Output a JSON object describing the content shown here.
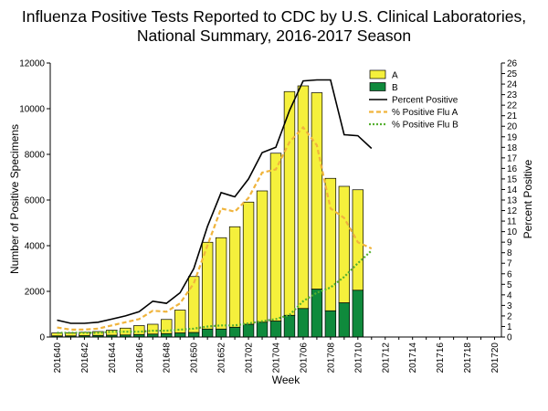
{
  "chart_data": {
    "type": "bar",
    "title_lines": [
      "Influenza Positive Tests Reported to CDC by U.S. Clinical Laboratories,",
      "National Summary, 2016-2017 Season"
    ],
    "xlabel": "Week",
    "ylabel": "Number of Positive Specimens",
    "y2label": "Percent Positive",
    "ylim": [
      0,
      12000
    ],
    "y_ticks": [
      0,
      2000,
      4000,
      6000,
      8000,
      10000,
      12000
    ],
    "y2lim": [
      0,
      26
    ],
    "y2_ticks": [
      0,
      1,
      2,
      3,
      4,
      5,
      6,
      7,
      8,
      9,
      10,
      11,
      12,
      13,
      14,
      15,
      16,
      17,
      18,
      19,
      20,
      21,
      22,
      23,
      24,
      25,
      26
    ],
    "categories": [
      "201640",
      "201641",
      "201642",
      "201643",
      "201644",
      "201645",
      "201646",
      "201647",
      "201648",
      "201649",
      "201650",
      "201651",
      "201652",
      "201701",
      "201702",
      "201703",
      "201704",
      "201705",
      "201706",
      "201707",
      "201708",
      "201709",
      "201710",
      "201711",
      "201712",
      "201713",
      "201714",
      "201715",
      "201716",
      "201717",
      "201718",
      "201719",
      "201720"
    ],
    "x_tick_labels": [
      "201640",
      "201642",
      "201644",
      "201646",
      "201648",
      "201650",
      "201652",
      "201702",
      "201704",
      "201706",
      "201708",
      "201710",
      "201712",
      "201714",
      "201716",
      "201718",
      "201720"
    ],
    "series": [
      {
        "name": "A",
        "kind": "bar",
        "color": "#f5f03c",
        "values": [
          130,
          130,
          150,
          170,
          220,
          300,
          390,
          430,
          620,
          1000,
          2450,
          3800,
          4000,
          4400,
          5350,
          5750,
          7350,
          9800,
          9750,
          8600,
          5800,
          5100,
          4400,
          null,
          null,
          null,
          null,
          null,
          null,
          null,
          null,
          null,
          null
        ]
      },
      {
        "name": "B",
        "kind": "bar",
        "color": "#0f8a3c",
        "values": [
          50,
          50,
          60,
          70,
          80,
          90,
          110,
          130,
          150,
          180,
          200,
          350,
          350,
          430,
          560,
          650,
          700,
          950,
          1250,
          2100,
          1150,
          1500,
          2050,
          null,
          null,
          null,
          null,
          null,
          null,
          null,
          null,
          null,
          null
        ]
      },
      {
        "name": "Percent Positive",
        "kind": "line",
        "color": "#000000",
        "values": [
          1.6,
          1.3,
          1.3,
          1.4,
          1.7,
          2.0,
          2.4,
          3.4,
          3.2,
          4.2,
          6.5,
          10.5,
          13.7,
          13.3,
          15.0,
          17.5,
          18.0,
          21.5,
          24.3,
          24.4,
          24.4,
          19.2,
          19.1,
          17.9,
          null,
          null,
          null,
          null,
          null,
          null,
          null,
          null,
          null
        ]
      },
      {
        "name": "% Positive Flu A",
        "kind": "line",
        "color": "#f0b43c",
        "values": [
          0.9,
          0.7,
          0.7,
          0.8,
          1.1,
          1.4,
          1.7,
          2.5,
          2.4,
          3.2,
          5.1,
          8.7,
          12.2,
          11.9,
          13.2,
          15.6,
          15.9,
          18.5,
          19.9,
          18.2,
          12.2,
          11.3,
          9.0,
          8.4,
          null,
          null,
          null,
          null,
          null,
          null,
          null,
          null,
          null
        ]
      },
      {
        "name": "% Positive Flu B",
        "kind": "line",
        "color": "#55b030",
        "values": [
          0.4,
          0.4,
          0.4,
          0.4,
          0.5,
          0.5,
          0.5,
          0.6,
          0.6,
          0.7,
          0.8,
          1.0,
          1.1,
          1.1,
          1.3,
          1.5,
          1.7,
          2.1,
          3.4,
          4.2,
          4.7,
          5.7,
          7.0,
          8.2,
          null,
          null,
          null,
          null,
          null,
          null,
          null,
          null,
          null
        ]
      }
    ],
    "legend": [
      "A",
      "B",
      "Percent Positive",
      "% Positive Flu A",
      "% Positive Flu B"
    ],
    "legend_placement": "top-right inside plot",
    "grid": false
  }
}
